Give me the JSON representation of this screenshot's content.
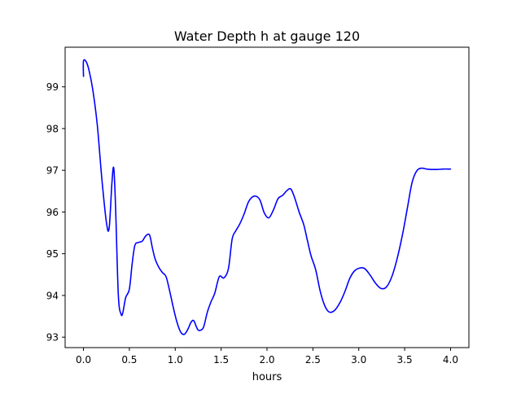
{
  "chart_data": {
    "type": "line",
    "title": "Water Depth h at gauge 120",
    "xlabel": "hours",
    "ylabel": "",
    "xlim": [
      -0.2,
      4.2
    ],
    "ylim": [
      92.75,
      99.95
    ],
    "x_ticks": [
      0.0,
      0.5,
      1.0,
      1.5,
      2.0,
      2.5,
      3.0,
      3.5,
      4.0
    ],
    "x_tick_labels": [
      "0.0",
      "0.5",
      "1.0",
      "1.5",
      "2.0",
      "2.5",
      "3.0",
      "3.5",
      "4.0"
    ],
    "y_ticks": [
      93,
      94,
      95,
      96,
      97,
      98,
      99
    ],
    "y_tick_labels": [
      "93",
      "94",
      "95",
      "96",
      "97",
      "98",
      "99"
    ],
    "grid": false,
    "legend": "none",
    "series": [
      {
        "color": "#0000ff",
        "x": [
          0.0,
          0.0,
          0.03,
          0.06,
          0.1,
          0.15,
          0.2,
          0.25,
          0.28,
          0.31,
          0.33,
          0.35,
          0.38,
          0.41,
          0.43,
          0.46,
          0.5,
          0.53,
          0.56,
          0.6,
          0.64,
          0.68,
          0.72,
          0.75,
          0.78,
          0.82,
          0.86,
          0.9,
          0.94,
          0.98,
          1.02,
          1.06,
          1.1,
          1.14,
          1.17,
          1.2,
          1.23,
          1.25,
          1.28,
          1.31,
          1.35,
          1.39,
          1.43,
          1.48,
          1.53,
          1.58,
          1.62,
          1.66,
          1.7,
          1.75,
          1.8,
          1.86,
          1.92,
          1.97,
          2.02,
          2.07,
          2.12,
          2.17,
          2.22,
          2.26,
          2.3,
          2.35,
          2.4,
          2.44,
          2.48,
          2.53,
          2.58,
          2.63,
          2.68,
          2.74,
          2.8,
          2.85,
          2.9,
          2.95,
          3.0,
          3.06,
          3.12,
          3.18,
          3.24,
          3.3,
          3.36,
          3.42,
          3.48,
          3.53,
          3.58,
          3.63,
          3.68,
          3.74,
          3.8,
          3.86,
          3.92,
          3.97,
          4.0
        ],
        "y": [
          99.25,
          99.62,
          99.6,
          99.4,
          98.95,
          98.1,
          96.8,
          95.75,
          95.62,
          96.7,
          97.05,
          96.1,
          94.0,
          93.55,
          93.6,
          93.95,
          94.15,
          94.75,
          95.2,
          95.27,
          95.3,
          95.43,
          95.45,
          95.15,
          94.88,
          94.68,
          94.55,
          94.45,
          94.1,
          93.7,
          93.35,
          93.12,
          93.07,
          93.2,
          93.35,
          93.4,
          93.25,
          93.17,
          93.17,
          93.25,
          93.6,
          93.85,
          94.05,
          94.45,
          94.42,
          94.65,
          95.35,
          95.55,
          95.7,
          95.95,
          96.25,
          96.38,
          96.3,
          95.98,
          95.86,
          96.05,
          96.32,
          96.4,
          96.52,
          96.55,
          96.35,
          96.0,
          95.7,
          95.32,
          94.95,
          94.62,
          94.1,
          93.75,
          93.6,
          93.65,
          93.85,
          94.1,
          94.4,
          94.58,
          94.65,
          94.65,
          94.5,
          94.3,
          94.17,
          94.2,
          94.45,
          94.9,
          95.5,
          96.1,
          96.7,
          96.98,
          97.05,
          97.03,
          97.02,
          97.02,
          97.03,
          97.03,
          97.03
        ]
      }
    ]
  }
}
